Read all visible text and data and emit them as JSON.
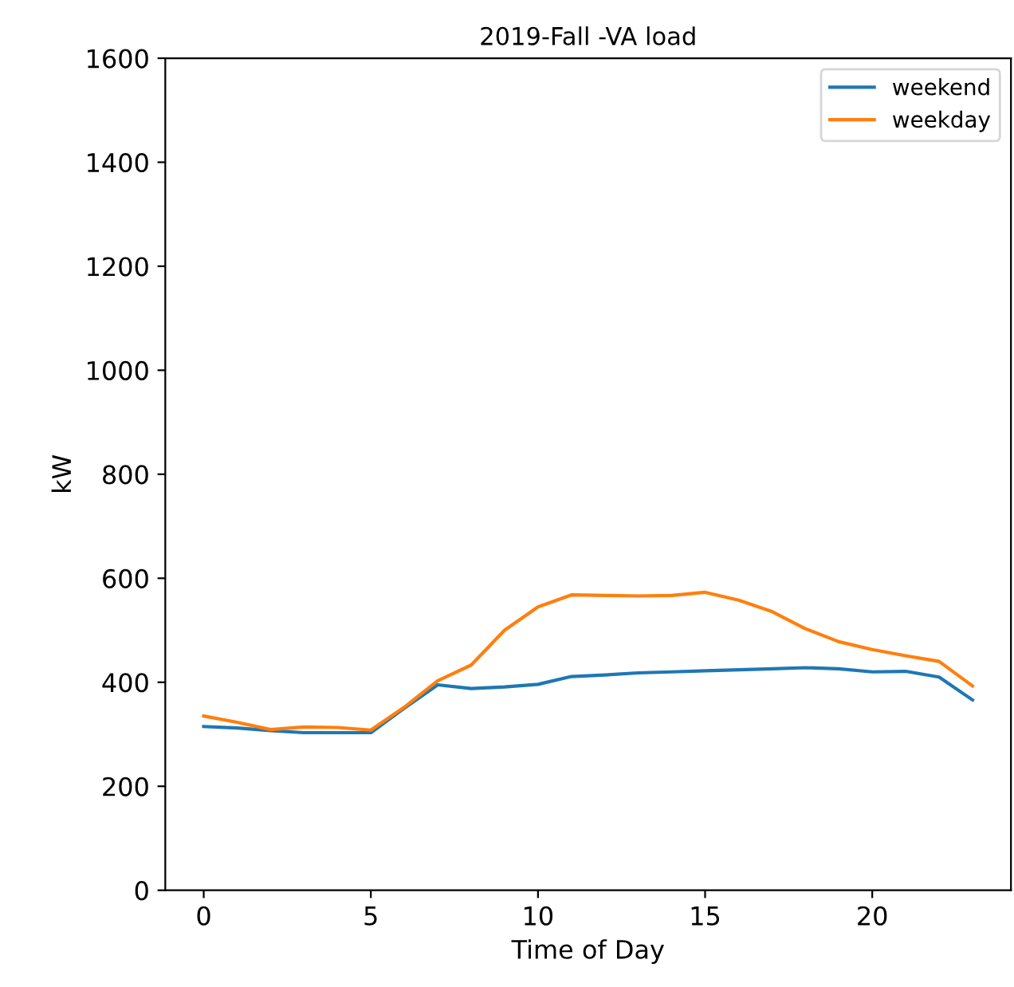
{
  "chart_data": {
    "type": "line",
    "title": "2019-Fall -VA load",
    "xlabel": "Time of Day",
    "ylabel": "kW",
    "x": [
      0,
      1,
      2,
      3,
      4,
      5,
      6,
      7,
      8,
      9,
      10,
      11,
      12,
      13,
      14,
      15,
      16,
      17,
      18,
      19,
      20,
      21,
      22,
      23
    ],
    "series": [
      {
        "name": "weekend",
        "color": "#1f77b4",
        "values": [
          315,
          312,
          307,
          303,
          303,
          303,
          350,
          395,
          388,
          391,
          396,
          411,
          414,
          418,
          420,
          422,
          424,
          426,
          428,
          426,
          420,
          421,
          410,
          366
        ]
      },
      {
        "name": "weekday",
        "color": "#ff7f0e",
        "values": [
          335,
          323,
          309,
          314,
          313,
          308,
          352,
          403,
          433,
          500,
          545,
          568,
          567,
          566,
          567,
          573,
          558,
          536,
          503,
          478,
          463,
          451,
          440,
          393
        ]
      }
    ],
    "xlim": [
      -1.15,
      24.15
    ],
    "xticks": [
      0,
      5,
      10,
      15,
      20
    ],
    "ylim": [
      0,
      1600
    ],
    "yticks": [
      0,
      200,
      400,
      600,
      800,
      1000,
      1200,
      1400,
      1600
    ],
    "grid": false,
    "legend": "top right",
    "line_style": "solid",
    "marker": "none"
  }
}
